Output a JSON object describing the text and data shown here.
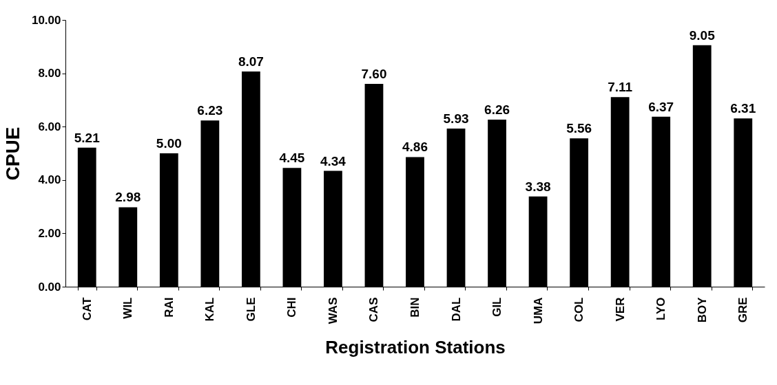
{
  "chart_data": {
    "type": "bar",
    "xlabel": "Registration Stations",
    "ylabel": "CPUE",
    "categories": [
      "CAT",
      "WIL",
      "RAI",
      "KAL",
      "GLE",
      "CHI",
      "WAS",
      "CAS",
      "BIN",
      "DAL",
      "GIL",
      "UMA",
      "COL",
      "VER",
      "LYO",
      "BOY",
      "GRE"
    ],
    "values": [
      5.21,
      2.98,
      5.0,
      6.23,
      8.07,
      4.45,
      4.34,
      7.6,
      4.86,
      5.93,
      6.26,
      3.38,
      5.56,
      7.11,
      6.37,
      9.05,
      6.31
    ],
    "value_labels": [
      "5.21",
      "2.98",
      "5.00",
      "6.23",
      "8.07",
      "4.45",
      "4.34",
      "7.60",
      "4.86",
      "5.93",
      "6.26",
      "3.38",
      "5.56",
      "7.11",
      "6.37",
      "9.05",
      "6.31"
    ],
    "color": "#000000",
    "ylim": [
      0,
      10
    ],
    "yticks": [
      {
        "value": 0,
        "label": "0.00"
      },
      {
        "value": 2,
        "label": "2.00"
      },
      {
        "value": 4,
        "label": "4.00"
      },
      {
        "value": 6,
        "label": "6.00"
      },
      {
        "value": 8,
        "label": "8.00"
      },
      {
        "value": 10,
        "label": "10.00"
      }
    ],
    "grid": false
  }
}
